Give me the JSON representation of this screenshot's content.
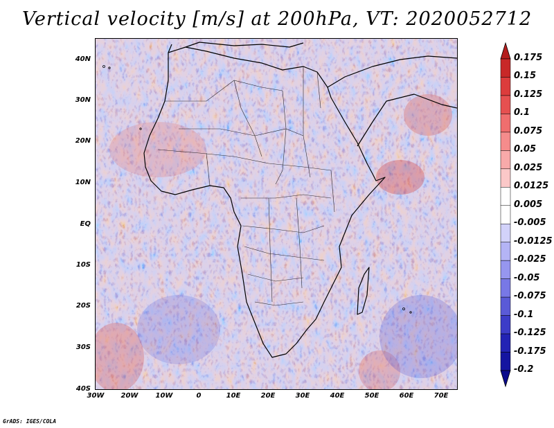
{
  "title": "Vertical velocity [m/s] at 200hPa, VT: 2020052712",
  "map": {
    "region": "Africa and surroundings",
    "lat_range": [
      "40S",
      "45N"
    ],
    "lon_range": [
      "30W",
      "80E"
    ],
    "lat_labels": [
      "40N",
      "30N",
      "20N",
      "10N",
      "EQ",
      "10S",
      "20S",
      "30S",
      "40S"
    ],
    "lon_labels": [
      "30W",
      "20W",
      "10W",
      "0",
      "10E",
      "20E",
      "30E",
      "40E",
      "50E",
      "60E",
      "70E"
    ],
    "field_colors": {
      "positive": "#e05050",
      "negative": "#6060e0",
      "neutral": "#ffffff",
      "coastline": "#000000"
    }
  },
  "colorbar": {
    "labels": [
      "0.175",
      "0.15",
      "0.125",
      "0.1",
      "0.075",
      "0.05",
      "0.025",
      "0.0125",
      "0.005",
      "-0.005",
      "-0.0125",
      "-0.025",
      "-0.05",
      "-0.075",
      "-0.1",
      "-0.125",
      "-0.175",
      "-0.2"
    ],
    "colors": [
      "#b41e1e",
      "#c82828",
      "#dc3c3c",
      "#e65050",
      "#f06e6e",
      "#f58c8c",
      "#f8aaaa",
      "#fbc8c8",
      "#ffffff",
      "#ffffff",
      "#d2d2fa",
      "#b4b4f5",
      "#9696ef",
      "#7878e6",
      "#5a5ad7",
      "#3c3cc8",
      "#2323b4",
      "#1414a0",
      "#0a0a8c"
    ]
  },
  "footer": "GrADS: IGES/COLA"
}
